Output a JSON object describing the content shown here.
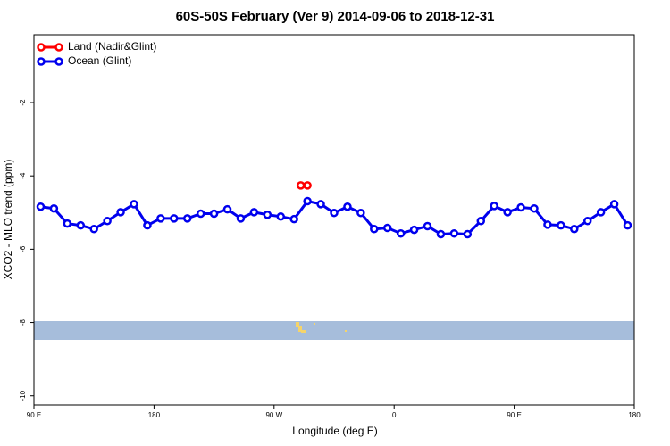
{
  "chart_data": {
    "type": "line",
    "title": "60S-50S February (Ver 9)   2014-09-06 to 2018-12-31",
    "xlabel": "Longitude (deg E)",
    "ylabel": "XCO2 - MLO trend (ppm)",
    "xlim": [
      90,
      540
    ],
    "ylim": [
      -10.25,
      -0.15
    ],
    "xticks": [
      {
        "value": 90,
        "label": "90 E"
      },
      180,
      {
        "value": 270,
        "label": "90 W"
      },
      {
        "value": 360,
        "label": "0"
      },
      {
        "value": 450,
        "label": "90 E"
      },
      {
        "value": 540,
        "label": "180"
      }
    ],
    "yticks": [
      -10,
      -8,
      -6,
      -4,
      -2
    ],
    "legend": "top-left",
    "series": [
      {
        "name": "Land (Nadir&Glint)",
        "color": "#ff0000",
        "x": [
          290,
          295
        ],
        "values": [
          -4.26,
          -4.26
        ]
      },
      {
        "name": "Ocean (Glint)",
        "color": "#0000ee",
        "x": [
          95,
          105,
          115,
          125,
          135,
          145,
          155,
          165,
          175,
          185,
          195,
          205,
          215,
          225,
          235,
          245,
          255,
          265,
          275,
          285,
          295,
          305,
          315,
          325,
          335,
          345,
          355,
          365,
          375,
          385,
          395,
          405,
          415,
          425,
          435,
          445,
          455,
          465,
          475,
          485,
          495,
          505,
          515,
          525,
          535
        ],
        "values": [
          -4.84,
          -4.89,
          -5.3,
          -5.35,
          -5.45,
          -5.23,
          -4.99,
          -4.77,
          -5.35,
          -5.16,
          -5.16,
          -5.16,
          -5.03,
          -5.03,
          -4.91,
          -5.16,
          -4.99,
          -5.06,
          -5.11,
          -5.18,
          -4.69,
          -4.77,
          -5.01,
          -4.84,
          -5.01,
          -5.45,
          -5.42,
          -5.57,
          -5.47,
          -5.37,
          -5.59,
          -5.57,
          -5.59,
          -5.23,
          -4.82,
          -4.99,
          -4.86,
          -4.89,
          -5.33,
          -5.35,
          -5.45,
          -5.23,
          -4.99,
          -4.77,
          -5.35
        ]
      }
    ]
  }
}
